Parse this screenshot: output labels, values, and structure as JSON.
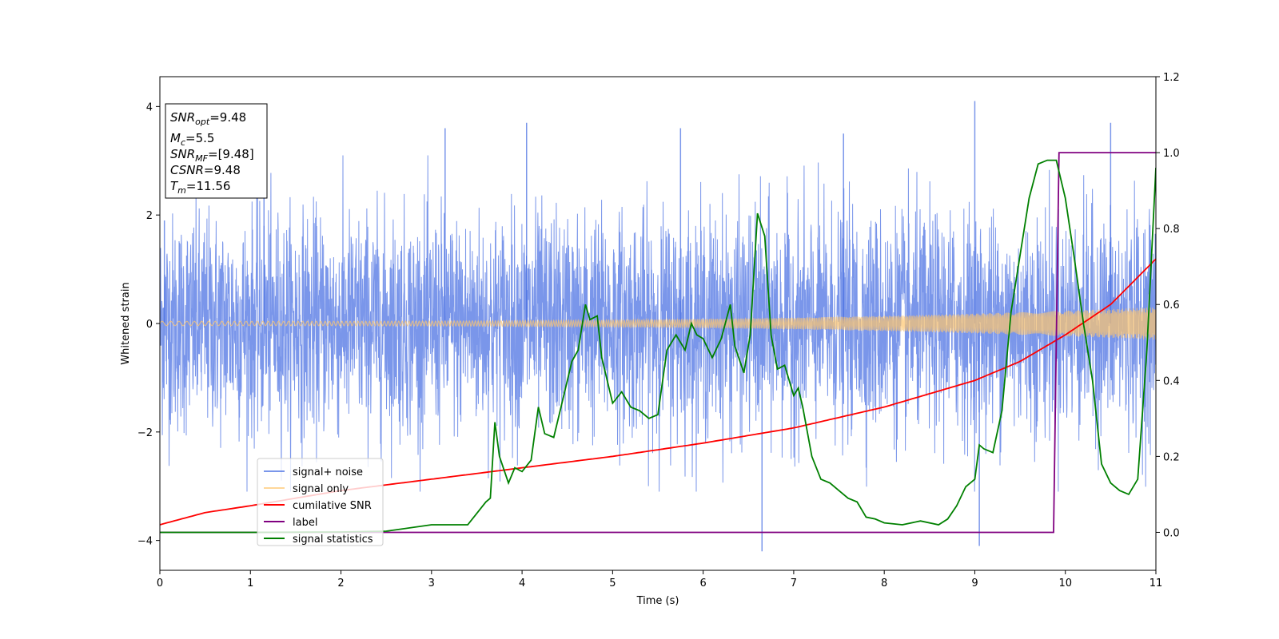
{
  "chart_data": {
    "type": "line",
    "xlabel": "Time (s)",
    "ylabel": "Whitened strain",
    "xlim": [
      0,
      11
    ],
    "ylim": [
      -4.55,
      4.55
    ],
    "y2lim": [
      -0.1,
      1.2
    ],
    "xticks": [
      0,
      1,
      2,
      3,
      4,
      5,
      6,
      7,
      8,
      9,
      10,
      11
    ],
    "yticks": [
      -4,
      -2,
      0,
      2,
      4
    ],
    "y2ticks": [
      0.0,
      0.2,
      0.4,
      0.6,
      0.8,
      1.0,
      1.2
    ],
    "grid": false,
    "legend_position": "lower-left",
    "info_box": {
      "snr_opt": {
        "base": "SNR",
        "sub": "opt",
        "value": "=9.48"
      },
      "mc": {
        "base": "M",
        "sub": "c",
        "value": "=5.5"
      },
      "snr_mf": {
        "base": "SNR",
        "sub": "MF",
        "value": "=[9.48]"
      },
      "csnr": {
        "base": "CSNR",
        "value": "=9.48"
      },
      "tm": {
        "base": "T",
        "sub": "m",
        "value": "=11.56"
      }
    },
    "series": [
      {
        "name": "signal+ noise",
        "axis": "left",
        "color": "#4169e1",
        "style": "noise",
        "noise_std": 1.0,
        "typical_range": [
          -2.6,
          2.6
        ],
        "peak_points": [
          [
            0.05,
            1.9
          ],
          [
            1.15,
            3.2
          ],
          [
            3.15,
            3.6
          ],
          [
            4.05,
            3.7
          ],
          [
            5.75,
            3.6
          ],
          [
            6.65,
            -4.2
          ],
          [
            7.55,
            3.5
          ],
          [
            9.0,
            4.1
          ],
          [
            9.05,
            -4.1
          ],
          [
            10.5,
            3.7
          ]
        ]
      },
      {
        "name": "signal only",
        "axis": "left",
        "color": "#ffc66d",
        "style": "chirp",
        "amplitude_start": 0.04,
        "amplitude_end": 0.3
      },
      {
        "name": "cumilative SNR",
        "axis": "right",
        "color": "#ff0000",
        "x": [
          0,
          0.5,
          1,
          2,
          3,
          4,
          5,
          6,
          7,
          8,
          9,
          9.5,
          10,
          10.5,
          11
        ],
        "y": [
          0.02,
          0.052,
          0.07,
          0.11,
          0.14,
          0.17,
          0.2,
          0.235,
          0.275,
          0.33,
          0.4,
          0.45,
          0.52,
          0.6,
          0.72
        ]
      },
      {
        "name": "label",
        "axis": "right",
        "color": "#800080",
        "x": [
          0,
          9.87,
          9.93,
          11
        ],
        "y": [
          0.0,
          0.0,
          1.0,
          1.0
        ]
      },
      {
        "name": "signal statistics",
        "axis": "right",
        "color": "#008000",
        "x": [
          0,
          1,
          2,
          2.5,
          3,
          3.4,
          3.5,
          3.6,
          3.65,
          3.7,
          3.75,
          3.85,
          3.92,
          4.0,
          4.1,
          4.18,
          4.25,
          4.35,
          4.45,
          4.55,
          4.62,
          4.7,
          4.75,
          4.83,
          4.88,
          5.0,
          5.1,
          5.2,
          5.3,
          5.4,
          5.5,
          5.6,
          5.7,
          5.8,
          5.87,
          5.93,
          6.0,
          6.1,
          6.2,
          6.3,
          6.35,
          6.45,
          6.52,
          6.6,
          6.68,
          6.75,
          6.82,
          6.9,
          7.0,
          7.05,
          7.1,
          7.2,
          7.3,
          7.4,
          7.5,
          7.6,
          7.7,
          7.8,
          7.9,
          8.0,
          8.2,
          8.4,
          8.6,
          8.7,
          8.8,
          8.9,
          9.0,
          9.05,
          9.1,
          9.2,
          9.3,
          9.4,
          9.5,
          9.6,
          9.7,
          9.8,
          9.9,
          10.0,
          10.1,
          10.2,
          10.3,
          10.4,
          10.5,
          10.6,
          10.7,
          10.8,
          10.9,
          11.0
        ],
        "y": [
          0.0,
          0.0,
          0.001,
          0.003,
          0.02,
          0.02,
          0.05,
          0.08,
          0.09,
          0.29,
          0.2,
          0.13,
          0.17,
          0.16,
          0.19,
          0.33,
          0.26,
          0.25,
          0.35,
          0.45,
          0.48,
          0.6,
          0.56,
          0.57,
          0.46,
          0.34,
          0.37,
          0.33,
          0.32,
          0.3,
          0.31,
          0.48,
          0.52,
          0.48,
          0.55,
          0.52,
          0.51,
          0.46,
          0.51,
          0.6,
          0.49,
          0.42,
          0.52,
          0.84,
          0.78,
          0.52,
          0.43,
          0.44,
          0.36,
          0.38,
          0.33,
          0.2,
          0.14,
          0.13,
          0.11,
          0.09,
          0.08,
          0.04,
          0.035,
          0.025,
          0.02,
          0.03,
          0.02,
          0.035,
          0.07,
          0.12,
          0.14,
          0.23,
          0.22,
          0.21,
          0.32,
          0.58,
          0.73,
          0.88,
          0.97,
          0.98,
          0.98,
          0.88,
          0.72,
          0.55,
          0.4,
          0.18,
          0.13,
          0.11,
          0.1,
          0.14,
          0.48,
          0.96
        ]
      }
    ]
  }
}
